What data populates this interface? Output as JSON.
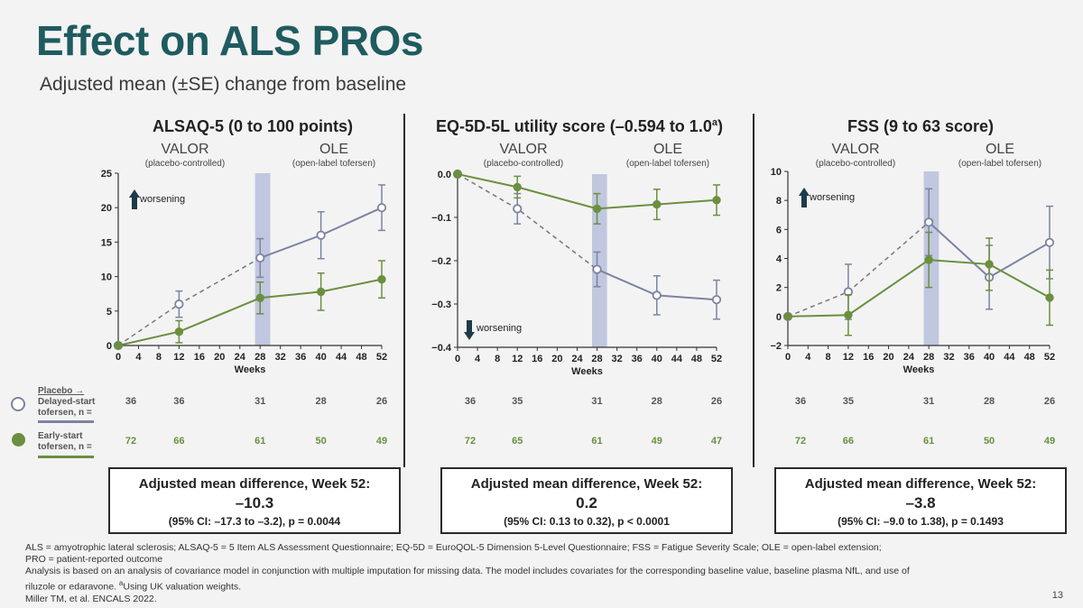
{
  "title": "Effect on ALS PROs",
  "subtitle": "Adjusted mean (±SE) change from baseline",
  "colors": {
    "placebo": "#7c83a3",
    "early": "#6b8f3f",
    "band": "#b3bcd9",
    "title": "#1f5b5f"
  },
  "legend": {
    "placebo_label_1": "Placebo →",
    "placebo_label_2": "Delayed-start",
    "placebo_label_3": "tofersen, n =",
    "early_label_1": "Early-start",
    "early_label_2": "tofersen, n ="
  },
  "periods": {
    "valor": "VALOR",
    "valor_sub": "(placebo-controlled)",
    "ole": "OLE",
    "ole_sub": "(open-label tofersen)"
  },
  "panels": [
    {
      "title": "ALSAQ-5 (0 to 100 points)",
      "title_sup": "",
      "n_placebo": [
        "36",
        "36",
        "31",
        "28",
        "26"
      ],
      "n_early": [
        "72",
        "66",
        "61",
        "50",
        "49"
      ],
      "result_heading": "Adjusted mean difference, Week 52:",
      "result_value": "–10.3",
      "result_ci": "(95% CI: –17.3 to –3.2), p = 0.0044"
    },
    {
      "title": "EQ-5D-5L utility score (–0.594 to 1.0",
      "title_sup": "a",
      "title_end": ")",
      "n_placebo": [
        "36",
        "35",
        "31",
        "28",
        "26"
      ],
      "n_early": [
        "72",
        "65",
        "61",
        "49",
        "47"
      ],
      "result_heading": "Adjusted mean difference, Week 52:",
      "result_value": "0.2",
      "result_ci": "(95% CI: 0.13 to 0.32), p < 0.0001"
    },
    {
      "title": "FSS (9 to 63 score)",
      "title_sup": "",
      "n_placebo": [
        "36",
        "35",
        "31",
        "28",
        "26"
      ],
      "n_early": [
        "72",
        "66",
        "61",
        "50",
        "49"
      ],
      "result_heading": "Adjusted mean difference, Week 52:",
      "result_value": "–3.8",
      "result_ci": "(95% CI: –9.0 to 1.38), p = 0.1493"
    }
  ],
  "chart_data": [
    {
      "type": "line",
      "title": "ALSAQ-5 (0 to 100 points)",
      "xlabel": "Weeks",
      "xlim": [
        0,
        52
      ],
      "xticks": [
        0,
        4,
        8,
        12,
        16,
        20,
        24,
        28,
        32,
        36,
        40,
        44,
        48,
        52
      ],
      "ylim": [
        0,
        25
      ],
      "yticks": [
        0,
        5,
        10,
        15,
        20,
        25
      ],
      "annotation": "worsening",
      "annotation_direction": "up",
      "band_weeks": [
        27,
        30
      ],
      "series": [
        {
          "name": "Placebo → Delayed-start tofersen",
          "x": [
            0,
            12,
            28,
            40,
            52
          ],
          "y": [
            0,
            6.0,
            12.7,
            16.0,
            20.0
          ],
          "se": [
            0,
            1.9,
            2.8,
            3.4,
            3.3
          ]
        },
        {
          "name": "Early-start tofersen",
          "x": [
            0,
            12,
            28,
            40,
            52
          ],
          "y": [
            0,
            2.0,
            6.9,
            7.8,
            9.6
          ],
          "se": [
            0,
            1.6,
            2.3,
            2.7,
            2.7
          ]
        }
      ]
    },
    {
      "type": "line",
      "title": "EQ-5D-5L utility score (–0.594 to 1.0)",
      "xlabel": "Weeks",
      "xlim": [
        0,
        52
      ],
      "xticks": [
        0,
        4,
        8,
        12,
        16,
        20,
        24,
        28,
        32,
        36,
        40,
        44,
        48,
        52
      ],
      "ylim": [
        -0.4,
        0.0
      ],
      "yticks": [
        0.0,
        -0.1,
        -0.2,
        -0.3,
        -0.4
      ],
      "ytick_labels": [
        "0.0",
        "−0.1",
        "−0.2",
        "−0.3",
        "−0.4"
      ],
      "annotation": "worsening",
      "annotation_direction": "down",
      "band_weeks": [
        27,
        30
      ],
      "series": [
        {
          "name": "Placebo → Delayed-start tofersen",
          "x": [
            0,
            12,
            28,
            40,
            52
          ],
          "y": [
            0,
            -0.08,
            -0.22,
            -0.28,
            -0.29
          ],
          "se": [
            0,
            0.035,
            0.04,
            0.045,
            0.045
          ]
        },
        {
          "name": "Early-start tofersen",
          "x": [
            0,
            12,
            28,
            40,
            52
          ],
          "y": [
            0,
            -0.03,
            -0.08,
            -0.07,
            -0.06
          ],
          "se": [
            0,
            0.025,
            0.035,
            0.035,
            0.035
          ]
        }
      ]
    },
    {
      "type": "line",
      "title": "FSS (9 to 63 score)",
      "xlabel": "Weeks",
      "xlim": [
        0,
        52
      ],
      "xticks": [
        0,
        4,
        8,
        12,
        16,
        20,
        24,
        28,
        32,
        36,
        40,
        44,
        48,
        52
      ],
      "ylim": [
        -2,
        10
      ],
      "yticks": [
        -2,
        0,
        2,
        4,
        6,
        8,
        10
      ],
      "ytick_labels": [
        "−2",
        "0",
        "2",
        "4",
        "6",
        "8",
        "10"
      ],
      "annotation": "worsening",
      "annotation_direction": "up",
      "band_weeks": [
        27,
        30
      ],
      "series": [
        {
          "name": "Placebo → Delayed-start tofersen",
          "x": [
            0,
            12,
            28,
            40,
            52
          ],
          "y": [
            0,
            1.7,
            6.5,
            2.7,
            5.1
          ],
          "se": [
            0,
            1.9,
            2.3,
            2.2,
            2.5
          ]
        },
        {
          "name": "Early-start tofersen",
          "x": [
            0,
            12,
            28,
            40,
            52
          ],
          "y": [
            0,
            0.1,
            3.9,
            3.6,
            1.3
          ],
          "se": [
            0,
            1.4,
            1.9,
            1.8,
            1.9
          ]
        }
      ]
    }
  ],
  "footnotes": {
    "line1": "ALS = amyotrophic lateral sclerosis; ALSAQ-5 = 5 Item ALS Assessment Questionnaire; EQ-5D = EuroQOL-5 Dimension 5-Level Questionnaire; FSS = Fatigue Severity Scale; OLE = open-label extension;",
    "line2": "PRO = patient-reported outcome",
    "line3": "Analysis is based on an analysis of covariance model in conjunction with multiple imputation for missing data. The model includes covariates for the corresponding baseline value, baseline plasma NfL, and use of",
    "line4a": "riluzole or edaravone. ",
    "line4sup": "a",
    "line4b": "Using UK valuation weights.",
    "line5": "Miller TM, et al. ENCALS 2022."
  },
  "page_number": "13"
}
